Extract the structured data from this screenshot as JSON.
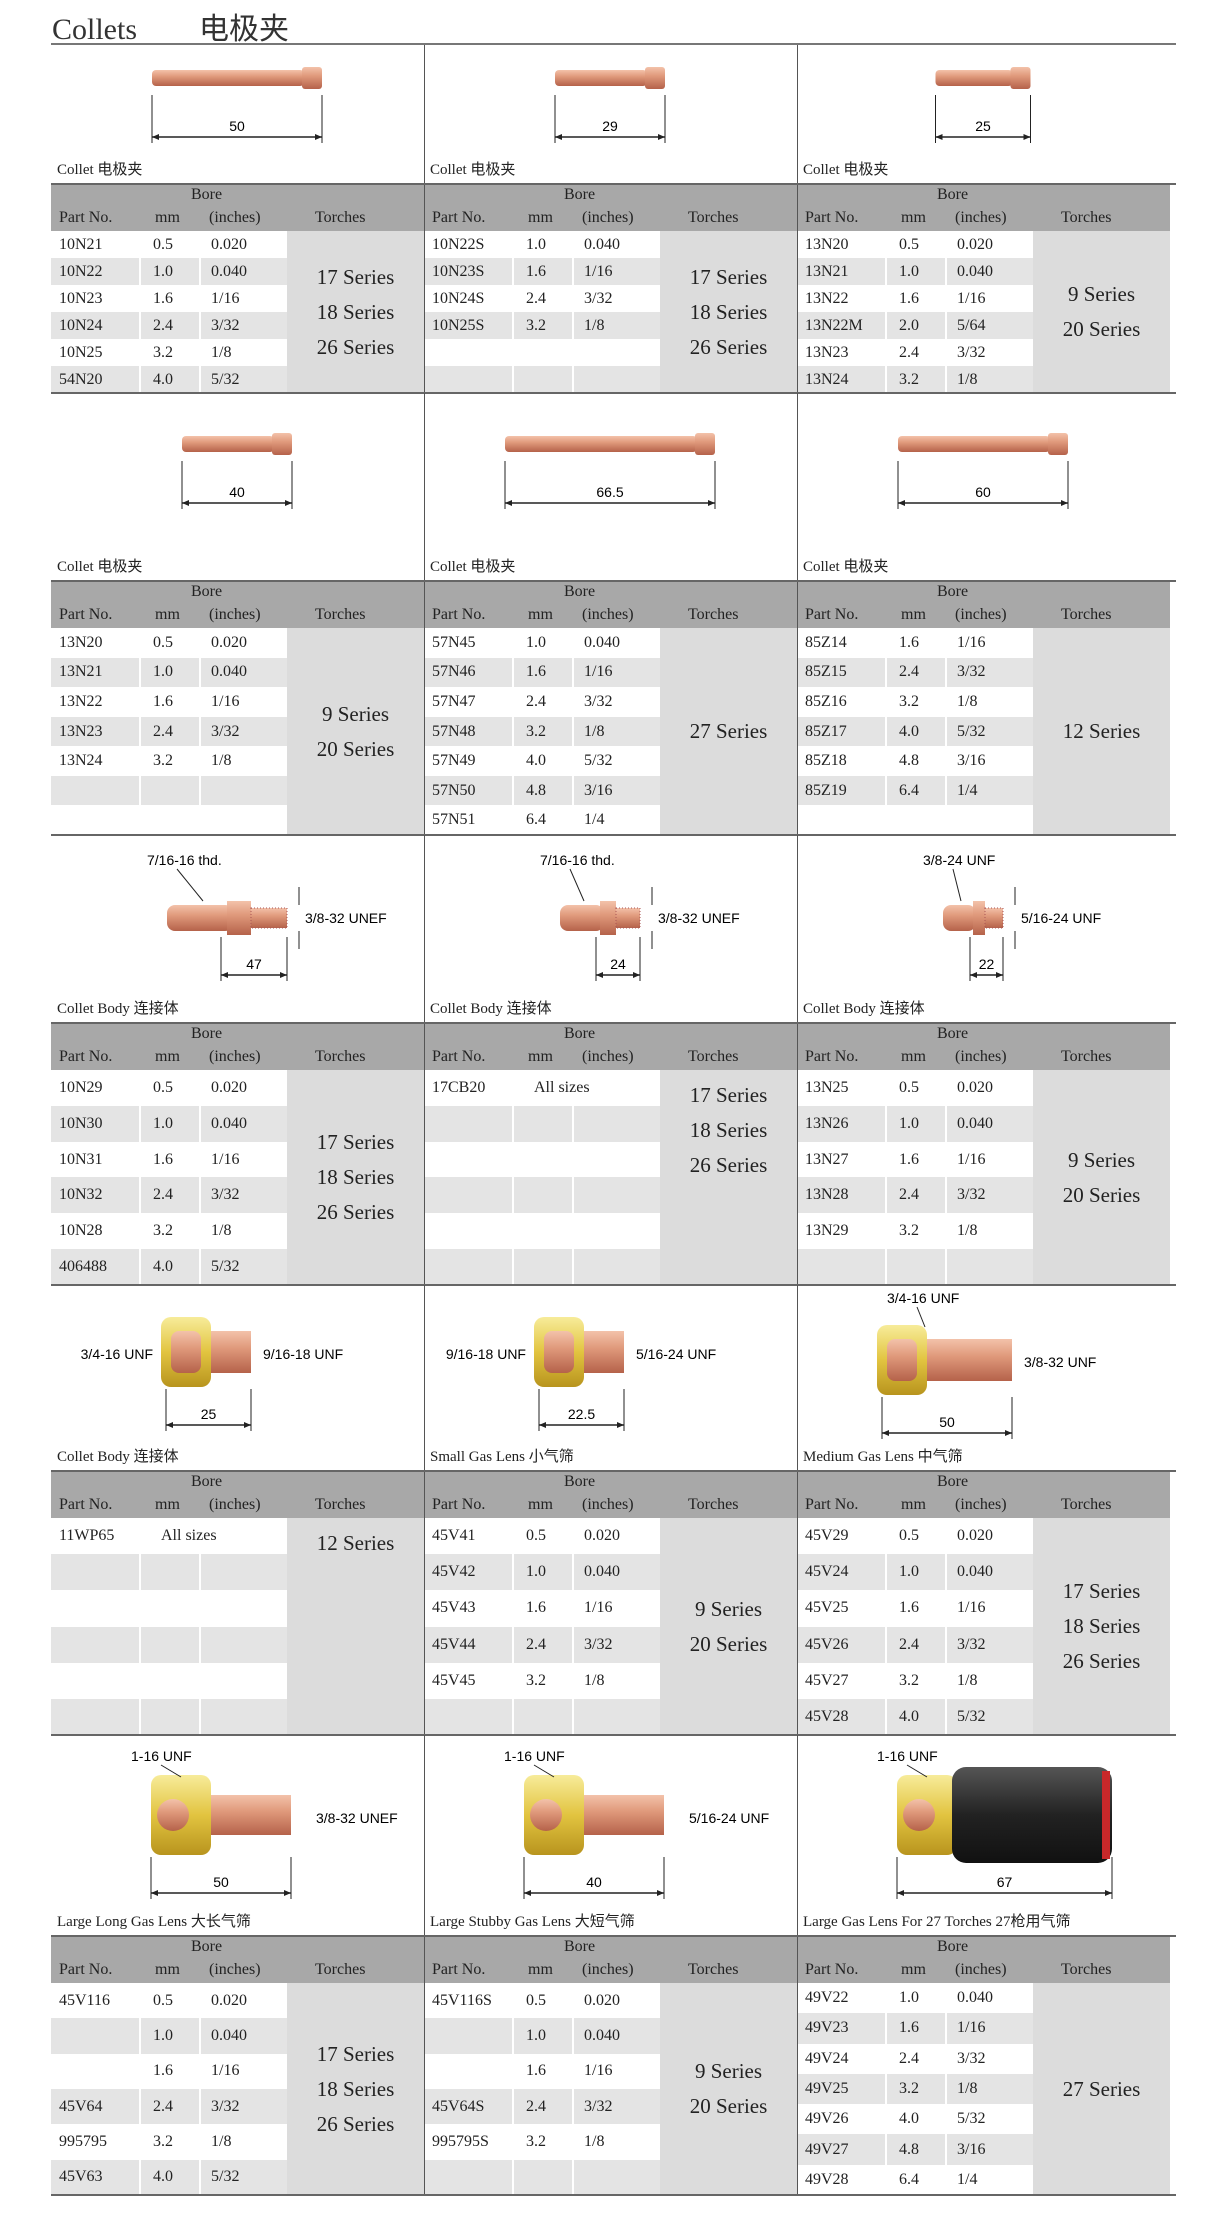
{
  "header": {
    "title": "Collets",
    "title_cn": "电极夹"
  },
  "table_headers": {
    "part_no": "Part No.",
    "bore": "Bore",
    "mm": "mm",
    "inches": "(inches)",
    "torches": "Torches"
  },
  "colors": {
    "copper": "#d98c6e",
    "brass": "#e6c84a",
    "header_gray": "#a8a8a8",
    "row_gray": "#e4e4e4",
    "torch_gray": "#dcdcdc"
  },
  "sections": [
    {
      "cells": [
        {
          "caption": "Collet 电极夹",
          "figure": {
            "type": "collet",
            "length": "50",
            "size": "l"
          },
          "rows": [
            [
              "10N21",
              "0.5",
              "0.020"
            ],
            [
              "10N22",
              "1.0",
              "0.040"
            ],
            [
              "10N23",
              "1.6",
              "1/16"
            ],
            [
              "10N24",
              "2.4",
              "3/32"
            ],
            [
              "10N25",
              "3.2",
              "1/8"
            ],
            [
              "54N20",
              "4.0",
              "5/32"
            ]
          ],
          "torches": [
            "17 Series",
            "18 Series",
            "26 Series"
          ]
        },
        {
          "caption": "Collet 电极夹",
          "figure": {
            "type": "collet",
            "length": "29",
            "size": "m"
          },
          "rows": [
            [
              "10N22S",
              "1.0",
              "0.040"
            ],
            [
              "10N23S",
              "1.6",
              "1/16"
            ],
            [
              "10N24S",
              "2.4",
              "3/32"
            ],
            [
              "10N25S",
              "3.2",
              "1/8"
            ],
            [
              "",
              "",
              ""
            ],
            [
              "",
              "",
              ""
            ]
          ],
          "torches": [
            "17 Series",
            "18 Series",
            "26 Series"
          ]
        },
        {
          "caption": "Collet 电极夹",
          "figure": {
            "type": "collet",
            "length": "25",
            "size": "s"
          },
          "rows": [
            [
              "13N20",
              "0.5",
              "0.020"
            ],
            [
              "13N21",
              "1.0",
              "0.040"
            ],
            [
              "13N22",
              "1.6",
              "1/16"
            ],
            [
              "13N22M",
              "2.0",
              "5/64"
            ],
            [
              "13N23",
              "2.4",
              "3/32"
            ],
            [
              "13N24",
              "3.2",
              "1/8"
            ]
          ],
          "torches": [
            "9 Series",
            "20 Series"
          ]
        }
      ]
    },
    {
      "cells": [
        {
          "caption": "Collet 电极夹",
          "figure": {
            "type": "collet",
            "length": "40",
            "size": "m"
          },
          "rows": [
            [
              "13N20",
              "0.5",
              "0.020"
            ],
            [
              "13N21",
              "1.0",
              "0.040"
            ],
            [
              "13N22",
              "1.6",
              "1/16"
            ],
            [
              "13N23",
              "2.4",
              "3/32"
            ],
            [
              "13N24",
              "3.2",
              "1/8"
            ],
            [
              "",
              "",
              ""
            ],
            [
              "",
              "",
              ""
            ]
          ],
          "torches": [
            "9 Series",
            "20 Series"
          ]
        },
        {
          "caption": "Collet 电极夹",
          "figure": {
            "type": "collet",
            "length": "66.5",
            "size": "xl"
          },
          "rows": [
            [
              "57N45",
              "1.0",
              "0.040"
            ],
            [
              "57N46",
              "1.6",
              "1/16"
            ],
            [
              "57N47",
              "2.4",
              "3/32"
            ],
            [
              "57N48",
              "3.2",
              "1/8"
            ],
            [
              "57N49",
              "4.0",
              "5/32"
            ],
            [
              "57N50",
              "4.8",
              "3/16"
            ],
            [
              "57N51",
              "6.4",
              "1/4"
            ]
          ],
          "torches": [
            "27 Series"
          ]
        },
        {
          "caption": "Collet 电极夹",
          "figure": {
            "type": "collet",
            "length": "60",
            "size": "l"
          },
          "rows": [
            [
              "85Z14",
              "1.6",
              "1/16"
            ],
            [
              "85Z15",
              "2.4",
              "3/32"
            ],
            [
              "85Z16",
              "3.2",
              "1/8"
            ],
            [
              "85Z17",
              "4.0",
              "5/32"
            ],
            [
              "85Z18",
              "4.8",
              "3/16"
            ],
            [
              "85Z19",
              "6.4",
              "1/4"
            ],
            [
              "",
              "",
              ""
            ]
          ],
          "torches": [
            "12 Series"
          ]
        }
      ]
    },
    {
      "cells": [
        {
          "caption": "Collet Body 连接体",
          "figure": {
            "type": "body",
            "length": "47",
            "top_thread": "7/16-16 thd.",
            "right_thread": "3/8-32 UNEF",
            "size": "l"
          },
          "rows": [
            [
              "10N29",
              "0.5",
              "0.020"
            ],
            [
              "10N30",
              "1.0",
              "0.040"
            ],
            [
              "10N31",
              "1.6",
              "1/16"
            ],
            [
              "10N32",
              "2.4",
              "3/32"
            ],
            [
              "10N28",
              "3.2",
              "1/8"
            ],
            [
              "406488",
              "4.0",
              "5/32"
            ]
          ],
          "torches": [
            "17 Series",
            "18 Series",
            "26 Series"
          ]
        },
        {
          "caption": "Collet Body 连接体",
          "figure": {
            "type": "body",
            "length": "24",
            "top_thread": "7/16-16 thd.",
            "right_thread": "3/8-32 UNEF",
            "size": "m"
          },
          "rows": [
            [
              "17CB20",
              "All sizes"
            ],
            [
              "",
              "",
              ""
            ],
            [
              "",
              "",
              ""
            ],
            [
              "",
              "",
              ""
            ],
            [
              "",
              "",
              ""
            ],
            [
              "",
              "",
              ""
            ]
          ],
          "torches": [
            "17 Series",
            "18 Series",
            "26 Series"
          ],
          "torches_top": true
        },
        {
          "caption": "Collet Body 连接体",
          "figure": {
            "type": "body",
            "length": "22",
            "top_thread": "3/8-24 UNF",
            "right_thread": "5/16-24 UNF",
            "size": "s"
          },
          "rows": [
            [
              "13N25",
              "0.5",
              "0.020"
            ],
            [
              "13N26",
              "1.0",
              "0.040"
            ],
            [
              "13N27",
              "1.6",
              "1/16"
            ],
            [
              "13N28",
              "2.4",
              "3/32"
            ],
            [
              "13N29",
              "3.2",
              "1/8"
            ],
            [
              "",
              "",
              ""
            ]
          ],
          "torches": [
            "9 Series",
            "20 Series"
          ]
        }
      ]
    },
    {
      "cells": [
        {
          "caption": "Collet Body 连接体",
          "figure": {
            "type": "lens",
            "length": "25",
            "left_thread": "3/4-16 UNF",
            "right_thread": "9/16-18 UNF"
          },
          "rows": [
            [
              "11WP65",
              "All sizes"
            ],
            [
              "",
              "",
              ""
            ],
            [
              "",
              "",
              ""
            ],
            [
              "",
              "",
              ""
            ],
            [
              "",
              "",
              ""
            ],
            [
              "",
              "",
              ""
            ]
          ],
          "torches": [
            "12 Series"
          ],
          "torches_top": true
        },
        {
          "caption": "Small Gas Lens 小气筛",
          "figure": {
            "type": "lens",
            "length": "22.5",
            "left_thread": "9/16-18 UNF",
            "right_thread": "5/16-24 UNF"
          },
          "rows": [
            [
              "45V41",
              "0.5",
              "0.020"
            ],
            [
              "45V42",
              "1.0",
              "0.040"
            ],
            [
              "45V43",
              "1.6",
              "1/16"
            ],
            [
              "45V44",
              "2.4",
              "3/32"
            ],
            [
              "45V45",
              "3.2",
              "1/8"
            ],
            [
              "",
              "",
              ""
            ]
          ],
          "torches": [
            "9 Series",
            "20 Series"
          ]
        },
        {
          "caption": "Medium Gas Lens 中气筛",
          "figure": {
            "type": "medlens",
            "length": "50",
            "top_thread": "3/4-16 UNF",
            "right_thread": "3/8-32 UNF"
          },
          "rows": [
            [
              "45V29",
              "0.5",
              "0.020"
            ],
            [
              "45V24",
              "1.0",
              "0.040"
            ],
            [
              "45V25",
              "1.6",
              "1/16"
            ],
            [
              "45V26",
              "2.4",
              "3/32"
            ],
            [
              "45V27",
              "3.2",
              "1/8"
            ],
            [
              "45V28",
              "4.0",
              "5/32"
            ]
          ],
          "torches": [
            "17 Series",
            "18 Series",
            "26 Series"
          ]
        }
      ]
    },
    {
      "cells": [
        {
          "caption": "Large Long Gas Lens 大长气筛",
          "figure": {
            "type": "biglens",
            "length": "50",
            "top_thread": "1-16 UNF",
            "right_thread": "3/8-32 UNEF"
          },
          "rows": [
            [
              "45V116",
              "0.5",
              "0.020"
            ],
            [
              "",
              "1.0",
              "0.040"
            ],
            [
              "",
              "1.6",
              "1/16"
            ],
            [
              "45V64",
              "2.4",
              "3/32"
            ],
            [
              "995795",
              "3.2",
              "1/8"
            ],
            [
              "45V63",
              "4.0",
              "5/32"
            ]
          ],
          "torches": [
            "17 Series",
            "18 Series",
            "26 Series"
          ]
        },
        {
          "caption": "Large Stubby Gas Lens 大短气筛",
          "figure": {
            "type": "biglens",
            "length": "40",
            "top_thread": "1-16 UNF",
            "right_thread": "5/16-24 UNF"
          },
          "rows": [
            [
              "45V116S",
              "0.5",
              "0.020"
            ],
            [
              "",
              "1.0",
              "0.040"
            ],
            [
              "",
              "1.6",
              "1/16"
            ],
            [
              "45V64S",
              "2.4",
              "3/32"
            ],
            [
              "995795S",
              "3.2",
              "1/8"
            ],
            [
              "",
              "",
              ""
            ]
          ],
          "torches": [
            "9 Series",
            "20 Series"
          ]
        },
        {
          "caption": "Large Gas Lens For 27 Torches 27枪用气筛",
          "figure": {
            "type": "cup",
            "length": "67",
            "top_thread": "1-16 UNF"
          },
          "rows": [
            [
              "49V22",
              "1.0",
              "0.040"
            ],
            [
              "49V23",
              "1.6",
              "1/16"
            ],
            [
              "49V24",
              "2.4",
              "3/32"
            ],
            [
              "49V25",
              "3.2",
              "1/8"
            ],
            [
              "49V26",
              "4.0",
              "5/32"
            ],
            [
              "49V27",
              "4.8",
              "3/16"
            ],
            [
              "49V28",
              "6.4",
              "1/4"
            ]
          ],
          "torches": [
            "27 Series"
          ]
        }
      ]
    }
  ]
}
